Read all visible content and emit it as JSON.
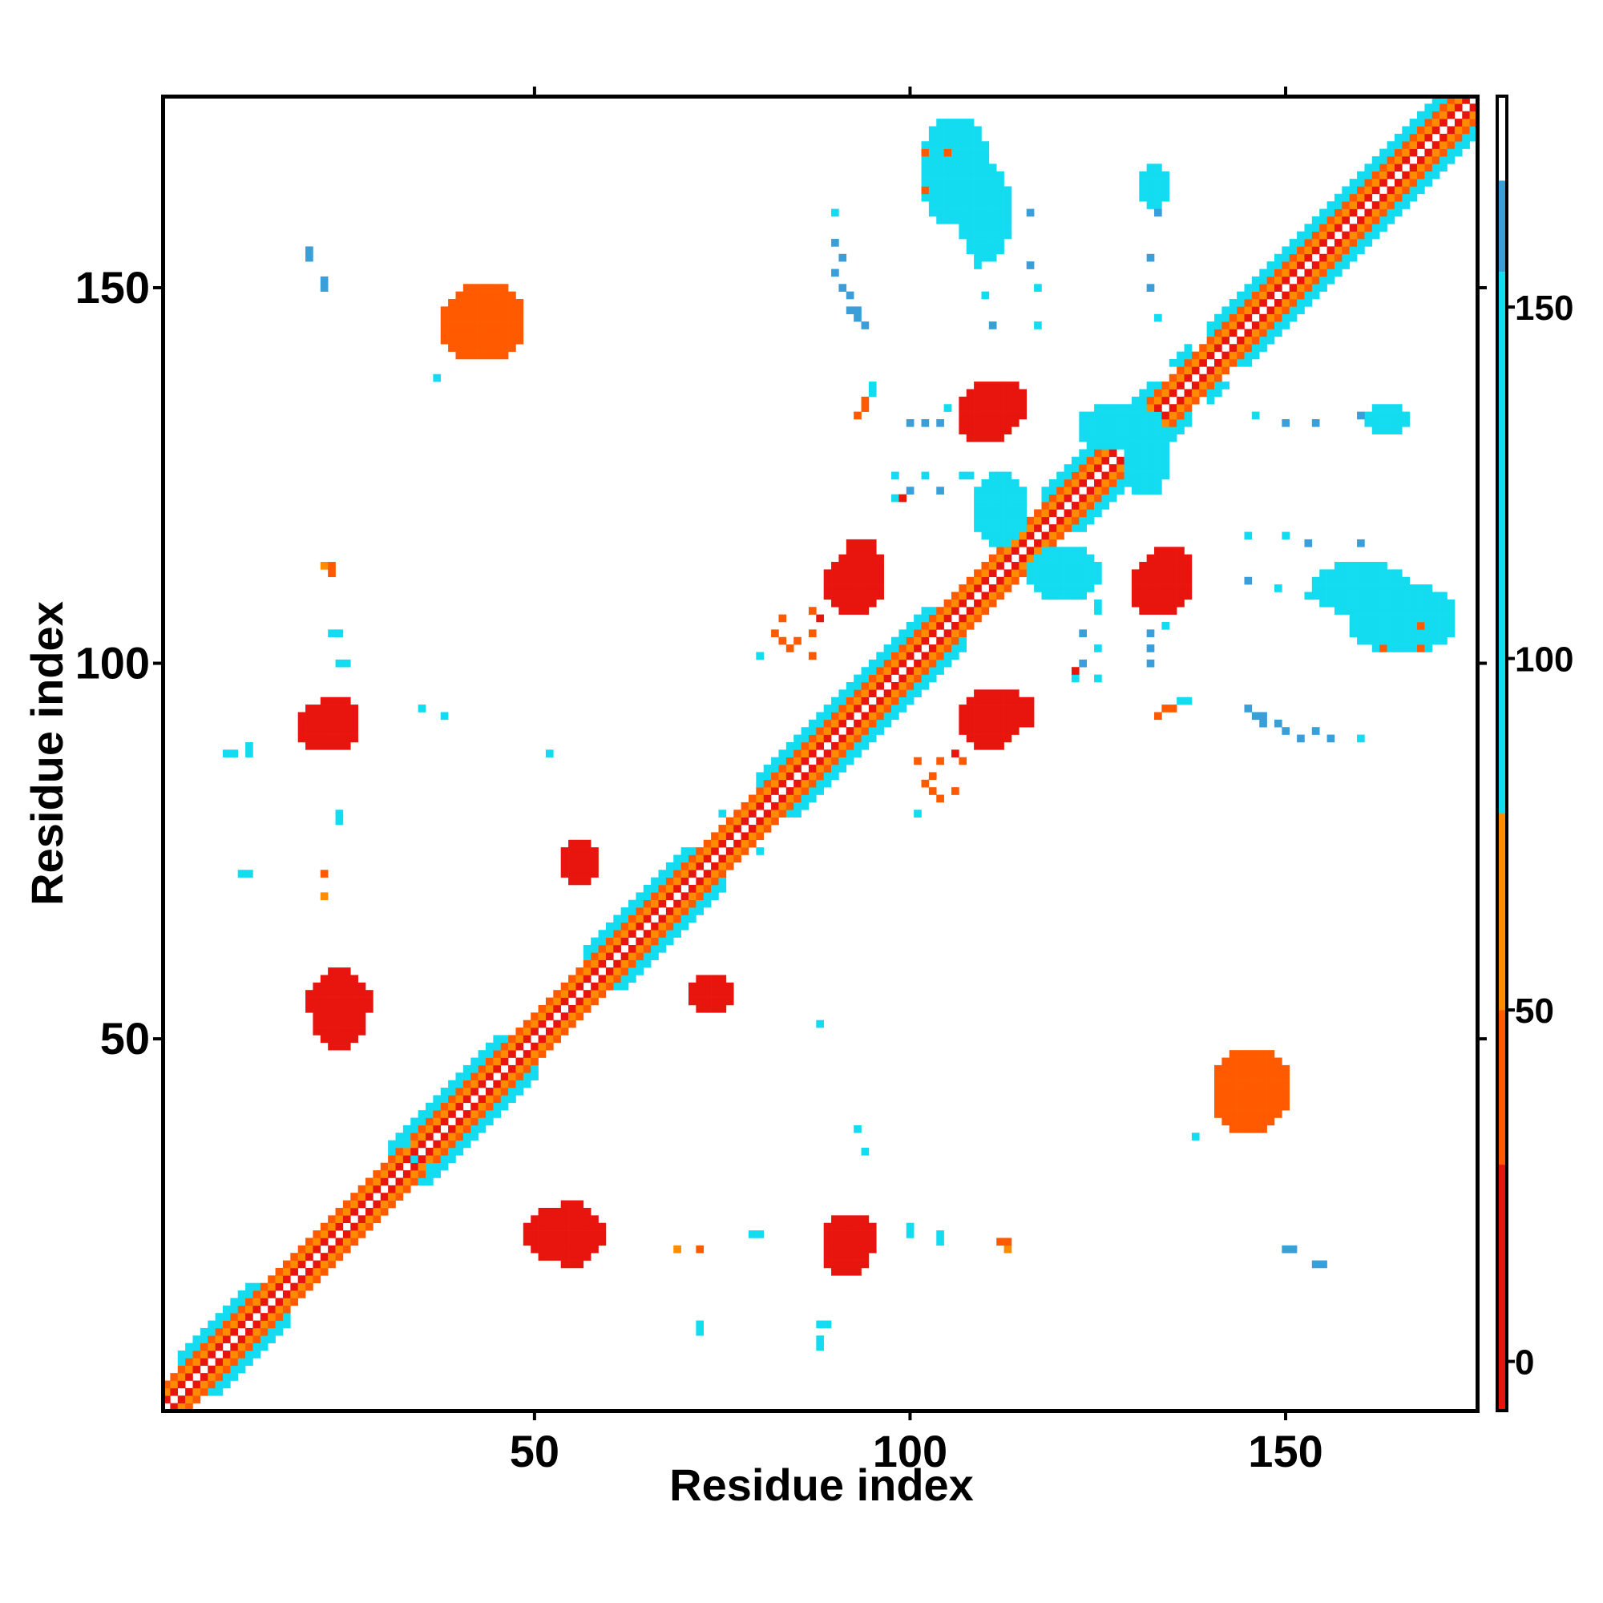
{
  "chart_data": {
    "type": "heatmap",
    "title": "",
    "xlabel": "Residue index",
    "ylabel": "Residue index",
    "xlim": [
      0.5,
      175.5
    ],
    "ylim": [
      0.5,
      175.5
    ],
    "x_ticks": [
      50,
      100,
      150
    ],
    "y_ticks": [
      50,
      100,
      150
    ],
    "x_tick_labels": [
      "50",
      "100",
      "150"
    ],
    "y_tick_labels": [
      "50",
      "100",
      "150"
    ],
    "grid": false,
    "symmetric": true,
    "colorbar": {
      "range": [
        -7,
        180
      ],
      "ticks": [
        0,
        50,
        100,
        150
      ],
      "tick_labels": [
        "0",
        "50",
        "100",
        "150"
      ],
      "stops": [
        {
          "from": -7,
          "to": 28,
          "color": "#e8140e"
        },
        {
          "from": 28,
          "to": 50,
          "color": "#ff5a00"
        },
        {
          "from": 50,
          "to": 78,
          "color": "#ff8c00"
        },
        {
          "from": 78,
          "to": 155,
          "color": "#14dcf0"
        },
        {
          "from": 155,
          "to": 168,
          "color": "#3a9ed8"
        },
        {
          "from": 168,
          "to": 180,
          "color": "#ffffff"
        }
      ]
    },
    "diagonal_pattern": {
      "offsets": [
        0,
        1,
        2,
        3,
        4,
        5
      ],
      "values": [
        175,
        10,
        65,
        40,
        100,
        150
      ]
    },
    "helix_segments": [
      [
        3,
        17
      ],
      [
        31,
        50
      ],
      [
        57,
        75
      ],
      [
        80,
        107
      ],
      [
        118,
        137
      ],
      [
        140,
        175
      ]
    ],
    "contact_patches": [
      {
        "x": [
          21,
          26
        ],
        "y": [
          90,
          95
        ],
        "value": 5
      },
      {
        "x": [
          21,
          27
        ],
        "y": [
          49,
          59
        ],
        "value": 5
      },
      {
        "x": [
          52,
          58
        ],
        "y": [
          20,
          28
        ],
        "value": 5
      },
      {
        "x": [
          89,
          94
        ],
        "y": [
          19,
          26
        ],
        "value": 10
      },
      {
        "x": [
          39,
          48
        ],
        "y": [
          141,
          150
        ],
        "value": 45
      },
      {
        "x": [
          107,
          113
        ],
        "y": [
          130,
          136
        ],
        "value": 10
      },
      {
        "x": [
          91,
          96
        ],
        "y": [
          108,
          116
        ],
        "value": 10
      },
      {
        "x": [
          132,
          137
        ],
        "y": [
          108,
          115
        ],
        "value": 10
      },
      {
        "x": [
          107,
          114
        ],
        "y": [
          89,
          96
        ],
        "value": 10
      },
      {
        "x": [
          54,
          57
        ],
        "y": [
          71,
          76
        ],
        "value": 10
      },
      {
        "x": [
          71,
          76
        ],
        "y": [
          54,
          58
        ],
        "value": 10
      },
      {
        "x": [
          141,
          149
        ],
        "y": [
          38,
          48
        ],
        "value": 45
      },
      {
        "x": [
          102,
          110
        ],
        "y": [
          159,
          172
        ],
        "value": 110
      },
      {
        "x": [
          131,
          134
        ],
        "y": [
          161,
          166
        ],
        "value": 110
      },
      {
        "x": [
          154,
          166
        ],
        "y": [
          107,
          113
        ],
        "value": 110
      },
      {
        "x": [
          123,
          133
        ],
        "y": [
          129,
          134
        ],
        "value": 110
      },
      {
        "x": [
          109,
          115
        ],
        "y": [
          116,
          125
        ],
        "value": 110
      }
    ],
    "sparse_points": [
      [
        20,
        154,
        160
      ],
      [
        22,
        150,
        160
      ],
      [
        22,
        113,
        50
      ],
      [
        24,
        104,
        150
      ],
      [
        24,
        80,
        150
      ],
      [
        22,
        69,
        50
      ],
      [
        12,
        72,
        120
      ],
      [
        9,
        88,
        120
      ],
      [
        12,
        88,
        120
      ],
      [
        35,
        94,
        150
      ],
      [
        38,
        93,
        150
      ],
      [
        52,
        88,
        120
      ],
      [
        24,
        100,
        150
      ],
      [
        25,
        100,
        150
      ],
      [
        90,
        160,
        120
      ],
      [
        91,
        154,
        160
      ],
      [
        91,
        150,
        160
      ],
      [
        92,
        147,
        160
      ],
      [
        93,
        147,
        160
      ],
      [
        94,
        145,
        160
      ],
      [
        109,
        153,
        120
      ],
      [
        110,
        149,
        120
      ],
      [
        111,
        145,
        160
      ],
      [
        95,
        136,
        120
      ],
      [
        93,
        133,
        45
      ],
      [
        94,
        134,
        45
      ],
      [
        100,
        132,
        160
      ],
      [
        104,
        132,
        160
      ],
      [
        100,
        123,
        160
      ],
      [
        104,
        123,
        160
      ],
      [
        108,
        125,
        120
      ],
      [
        107,
        125,
        120
      ],
      [
        72,
        22,
        45
      ],
      [
        79,
        24,
        120
      ],
      [
        89,
        12,
        120
      ],
      [
        88,
        10,
        150
      ],
      [
        72,
        11,
        120
      ],
      [
        34,
        34,
        150
      ],
      [
        33,
        36,
        150
      ],
      [
        100,
        24,
        150
      ],
      [
        104,
        23,
        150
      ],
      [
        112,
        23,
        45
      ],
      [
        113,
        23,
        45
      ],
      [
        151,
        22,
        160
      ],
      [
        155,
        20,
        160
      ],
      [
        138,
        37,
        120
      ],
      [
        82,
        104,
        45
      ],
      [
        83,
        106,
        45
      ],
      [
        80,
        101,
        120
      ],
      [
        84,
        102,
        45
      ],
      [
        101,
        87,
        45
      ],
      [
        103,
        83,
        45
      ],
      [
        104,
        87,
        45
      ],
      [
        106,
        88,
        10
      ],
      [
        107,
        87,
        45
      ],
      [
        103,
        85,
        45
      ],
      [
        133,
        93,
        45
      ],
      [
        135,
        94,
        45
      ],
      [
        137,
        95,
        120
      ],
      [
        122,
        98,
        120
      ],
      [
        125,
        98,
        120
      ],
      [
        122,
        99,
        10
      ],
      [
        125,
        102,
        120
      ],
      [
        132,
        102,
        160
      ],
      [
        134,
        105,
        120
      ],
      [
        146,
        93,
        160
      ],
      [
        149,
        92,
        160
      ],
      [
        152,
        90,
        160
      ],
      [
        156,
        90,
        160
      ],
      [
        145,
        117,
        120
      ],
      [
        150,
        117,
        120
      ],
      [
        153,
        116,
        160
      ],
      [
        160,
        116,
        160
      ],
      [
        168,
        105,
        45
      ],
      [
        168,
        102,
        45
      ],
      [
        163,
        102,
        45
      ],
      [
        146,
        133,
        120
      ],
      [
        150,
        132,
        160
      ],
      [
        154,
        132,
        160
      ],
      [
        160,
        133,
        160
      ],
      [
        166,
        132,
        120
      ]
    ]
  }
}
